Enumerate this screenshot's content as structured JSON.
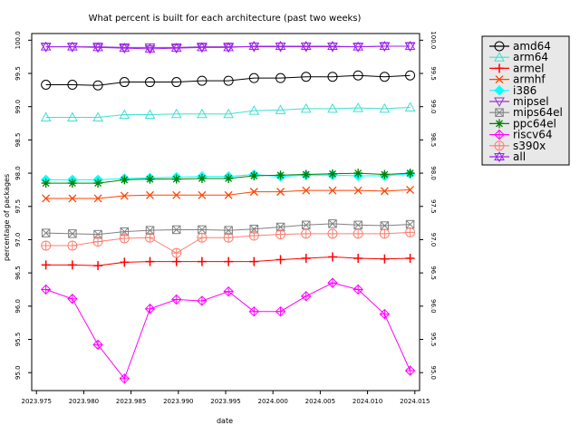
{
  "chart_data": {
    "type": "line",
    "title": "What percent is built for each architecture (past two weeks)",
    "xlabel": "date",
    "ylabel": "percentage of packages",
    "xlim": [
      2023.9745,
      2024.0155
    ],
    "ylim": [
      94.73,
      100.1
    ],
    "xticks": [
      "2023.975",
      "2023.980",
      "2023.985",
      "2023.990",
      "2023.995",
      "2024.000",
      "2024.005",
      "2024.010",
      "2024.015"
    ],
    "yticks": [
      "95.0",
      "95.5",
      "96.0",
      "96.5",
      "97.0",
      "97.5",
      "98.0",
      "98.5",
      "99.0",
      "99.5",
      "100.0"
    ],
    "grid": false,
    "legend_position": "top-right, outside plot",
    "x": [
      2023.976,
      2023.9788,
      2023.9815,
      2023.9843,
      2023.987,
      2023.9898,
      2023.9925,
      2023.9953,
      2023.998,
      2024.0008,
      2024.0035,
      2024.0063,
      2024.009,
      2024.0118,
      2024.0145
    ],
    "series": [
      {
        "name": "amd64",
        "color": "#000000",
        "marker": "circle",
        "values": [
          99.33,
          99.33,
          99.32,
          99.37,
          99.37,
          99.37,
          99.39,
          99.39,
          99.43,
          99.43,
          99.45,
          99.45,
          99.47,
          99.45,
          99.47
        ]
      },
      {
        "name": "arm64",
        "color": "#40e0d0",
        "marker": "triangle-up",
        "values": [
          98.84,
          98.84,
          98.84,
          98.88,
          98.88,
          98.89,
          98.89,
          98.89,
          98.94,
          98.95,
          98.97,
          98.97,
          98.98,
          98.97,
          98.99
        ]
      },
      {
        "name": "armel",
        "color": "#ff0000",
        "marker": "plus",
        "values": [
          96.62,
          96.62,
          96.61,
          96.66,
          96.67,
          96.67,
          96.67,
          96.67,
          96.67,
          96.7,
          96.72,
          96.74,
          96.72,
          96.71,
          96.72
        ]
      },
      {
        "name": "armhf",
        "color": "#ff4500",
        "marker": "x",
        "values": [
          97.62,
          97.62,
          97.62,
          97.66,
          97.67,
          97.67,
          97.67,
          97.67,
          97.72,
          97.72,
          97.74,
          97.74,
          97.74,
          97.73,
          97.75
        ]
      },
      {
        "name": "i386",
        "color": "#00ffff",
        "marker": "diamond",
        "values": [
          97.9,
          97.9,
          97.9,
          97.92,
          97.93,
          97.94,
          97.95,
          97.95,
          97.98,
          97.95,
          97.97,
          97.97,
          97.96,
          97.96,
          97.99
        ]
      },
      {
        "name": "mipsel",
        "color": "#9932cc",
        "marker": "triangle-down",
        "values": [
          99.9,
          99.9,
          99.9,
          99.89,
          99.89,
          99.89,
          99.9,
          99.9,
          99.9,
          99.9,
          99.9,
          99.9,
          99.9,
          99.91,
          99.91
        ]
      },
      {
        "name": "mips64el",
        "color": "#808080",
        "marker": "square-x",
        "values": [
          97.1,
          97.09,
          97.08,
          97.12,
          97.14,
          97.15,
          97.15,
          97.14,
          97.16,
          97.19,
          97.22,
          97.24,
          97.22,
          97.21,
          97.23
        ]
      },
      {
        "name": "ppc64el",
        "color": "#008000",
        "marker": "asterisk",
        "values": [
          97.85,
          97.85,
          97.85,
          97.9,
          97.91,
          97.91,
          97.92,
          97.92,
          97.96,
          97.97,
          97.98,
          97.99,
          98.0,
          97.98,
          98.0
        ]
      },
      {
        "name": "riscv64",
        "color": "#ff00ff",
        "marker": "diamond-plus",
        "values": [
          96.25,
          96.11,
          95.42,
          94.91,
          95.96,
          96.1,
          96.08,
          96.22,
          95.92,
          95.92,
          96.15,
          96.35,
          96.25,
          95.88,
          95.03
        ]
      },
      {
        "name": "s390x",
        "color": "#fa8072",
        "marker": "circle-plus",
        "values": [
          96.91,
          96.91,
          96.97,
          97.02,
          97.03,
          96.8,
          97.03,
          97.03,
          97.06,
          97.08,
          97.09,
          97.09,
          97.09,
          97.09,
          97.11
        ]
      },
      {
        "name": "all",
        "color": "#a020f0",
        "marker": "star",
        "values": [
          99.9,
          99.9,
          99.89,
          99.88,
          99.87,
          99.88,
          99.89,
          99.89,
          99.91,
          99.91,
          99.91,
          99.91,
          99.9,
          99.91,
          99.91
        ]
      }
    ]
  }
}
